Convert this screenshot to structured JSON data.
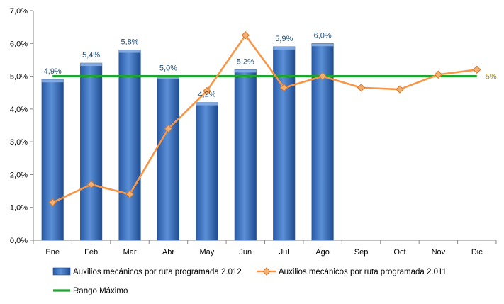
{
  "chart_data": {
    "type": "bar",
    "categories": [
      "Ene",
      "Feb",
      "Mar",
      "Abr",
      "May",
      "Jun",
      "Jul",
      "Ago",
      "Sep",
      "Oct",
      "Nov",
      "Dic"
    ],
    "ylim": [
      0,
      7
    ],
    "y_ticks": [
      "0,0%",
      "1,0%",
      "2,0%",
      "3,0%",
      "4,0%",
      "5,0%",
      "6,0%",
      "7,0%"
    ],
    "y_tick_values": [
      0,
      1,
      2,
      3,
      4,
      5,
      6,
      7
    ],
    "series": [
      {
        "name": "Auxilios mecánicos por ruta programada 2.012",
        "type": "bar",
        "color": "#3A72BE",
        "values": [
          4.9,
          5.4,
          5.8,
          5.0,
          4.2,
          5.2,
          5.9,
          6.0,
          null,
          null,
          null,
          null
        ],
        "labels": [
          "4,9%",
          "5,4%",
          "5,8%",
          "5,0%",
          "4,2%",
          "5,2%",
          "5,9%",
          "6,0%",
          "",
          "",
          "",
          ""
        ]
      },
      {
        "name": "Auxilios mecánicos por ruta programada 2.011",
        "type": "line",
        "color": "#F79646",
        "values": [
          1.15,
          1.7,
          1.4,
          3.4,
          4.55,
          6.25,
          4.65,
          5.0,
          4.65,
          4.6,
          5.05,
          5.2
        ]
      },
      {
        "name": "Rango Máximo",
        "type": "line",
        "color": "#1EA531",
        "values": [
          5,
          5,
          5,
          5,
          5,
          5,
          5,
          5,
          5,
          5,
          5,
          5
        ],
        "end_label": "5%"
      }
    ],
    "grid": false,
    "legend": "bottom"
  }
}
